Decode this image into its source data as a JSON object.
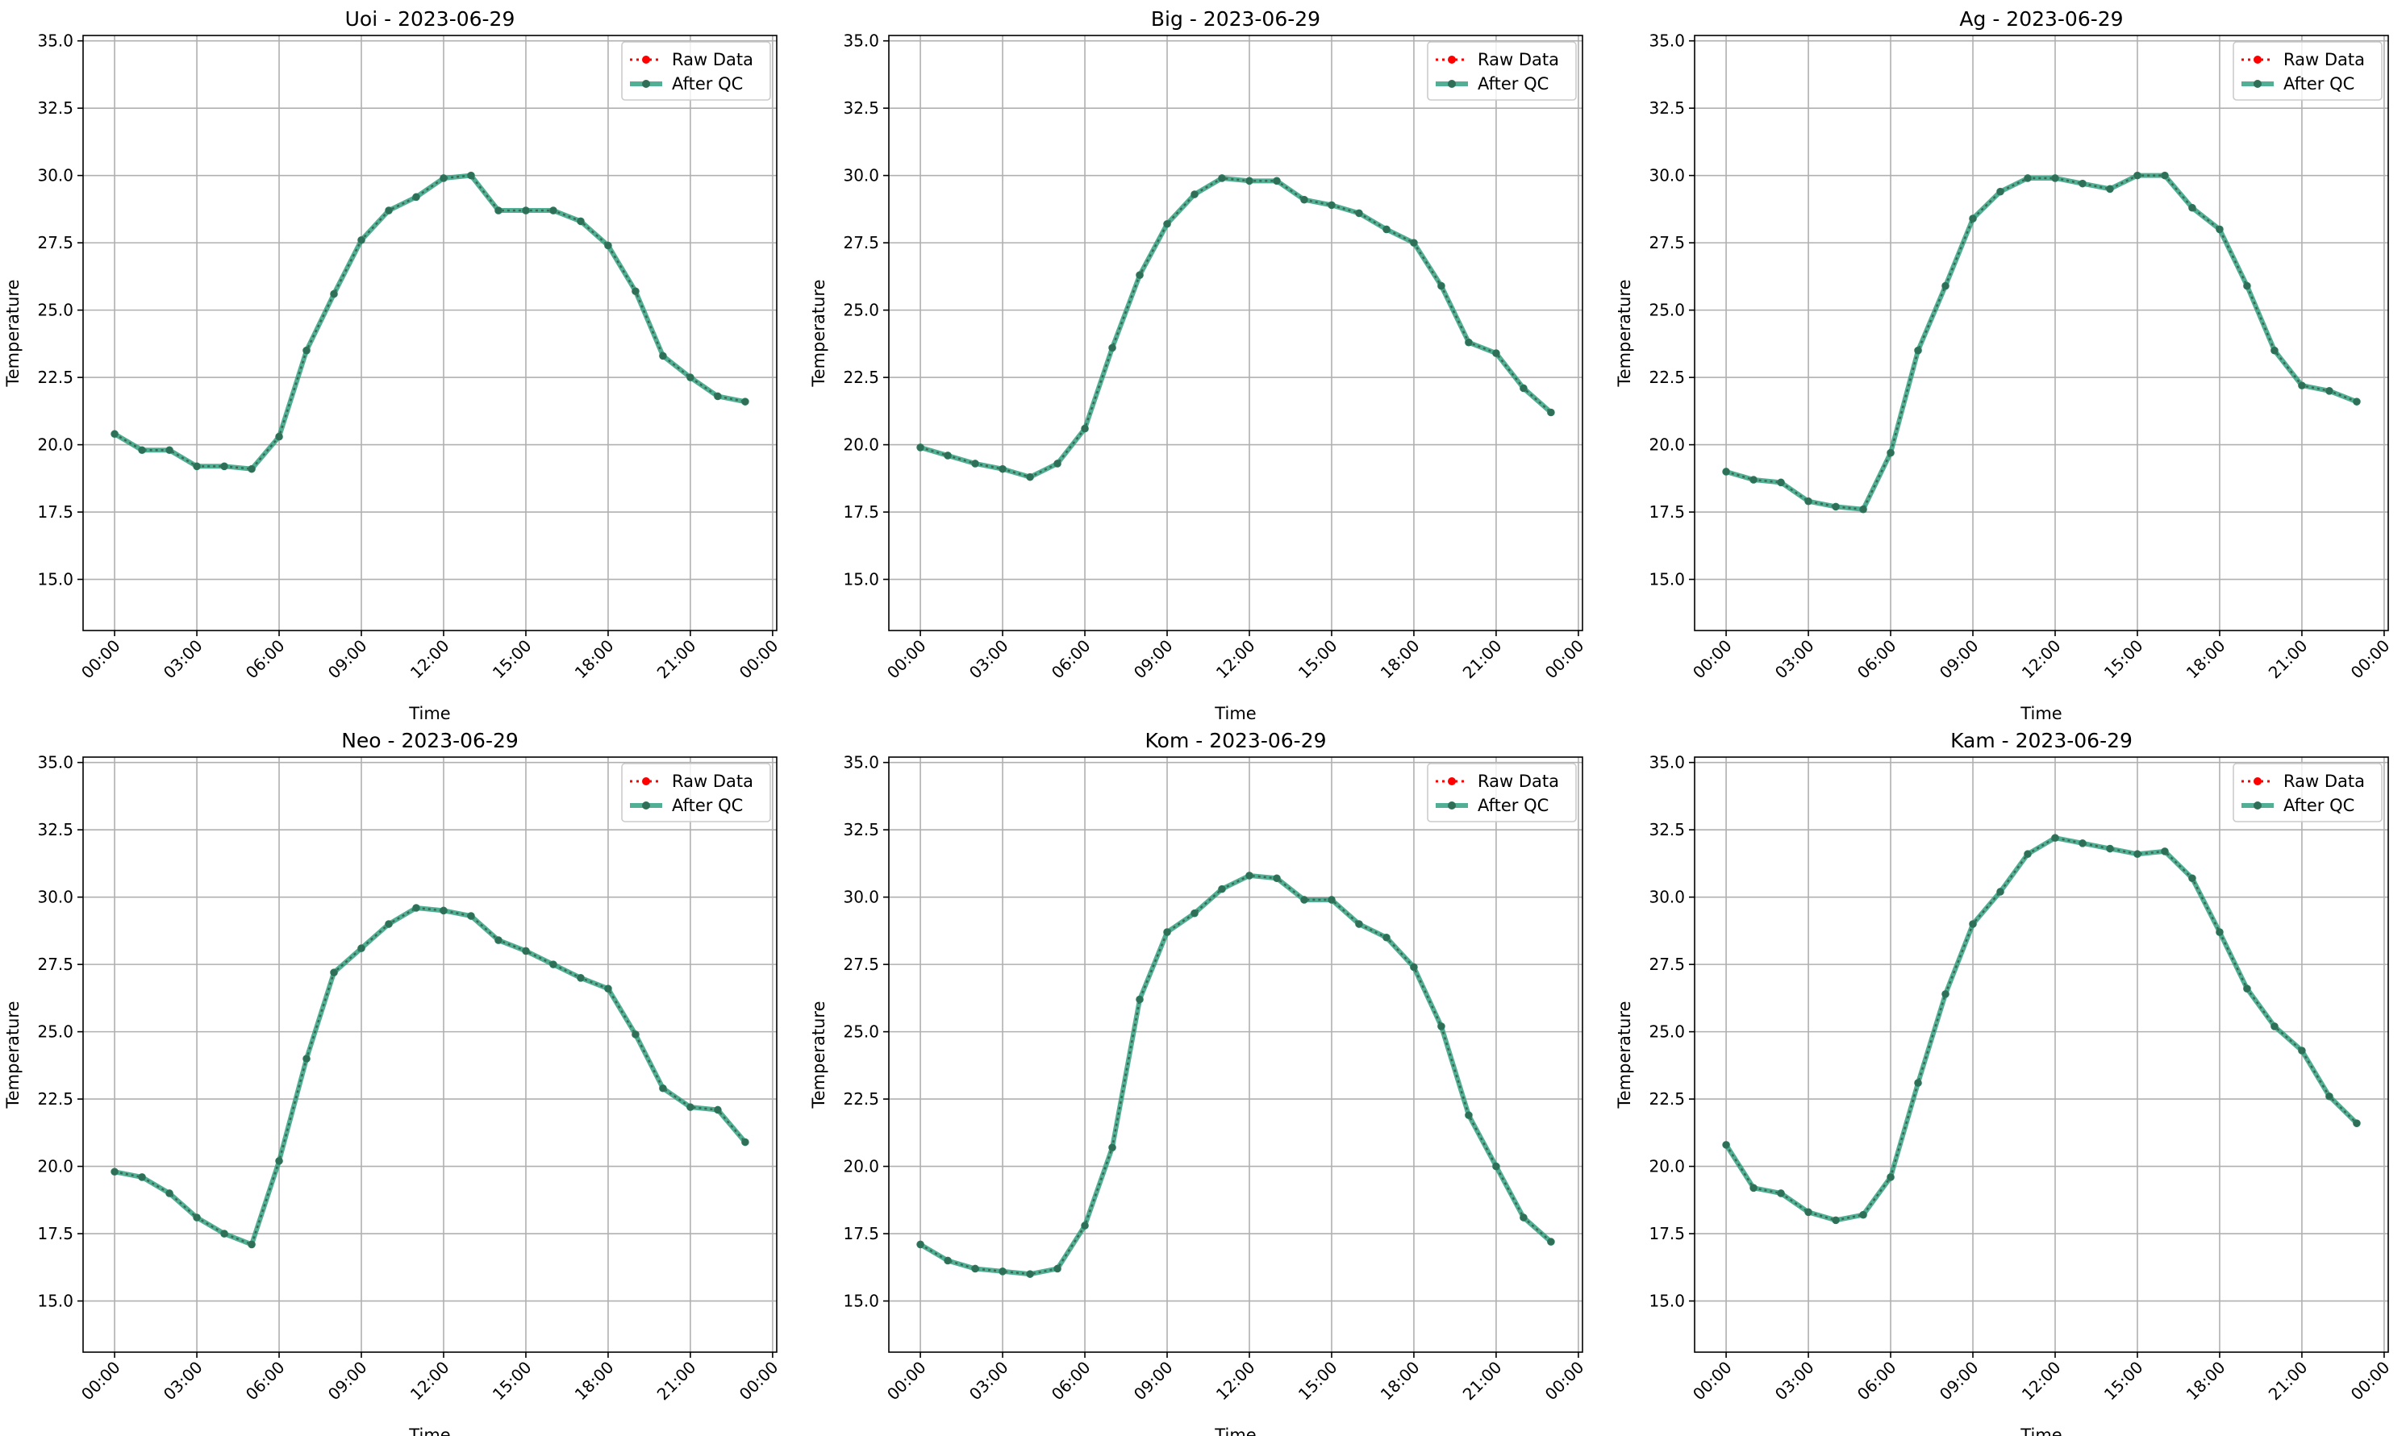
{
  "chart_data": [
    {
      "type": "line",
      "title": "Uoi - 2023-06-29",
      "xlabel": "Time",
      "ylabel": "Temperature",
      "ylim": [
        13.1,
        35.2
      ],
      "xlim_hours": [
        -1.15,
        24.15
      ],
      "yticks": [
        15.0,
        17.5,
        20.0,
        22.5,
        25.0,
        27.5,
        30.0,
        32.5,
        35.0
      ],
      "ytick_labels": [
        "15.0",
        "17.5",
        "20.0",
        "22.5",
        "25.0",
        "27.5",
        "30.0",
        "32.5",
        "35.0"
      ],
      "xticks_hours": [
        0,
        3,
        6,
        9,
        12,
        15,
        18,
        21,
        24
      ],
      "xtick_labels": [
        "00:00",
        "03:00",
        "06:00",
        "09:00",
        "12:00",
        "15:00",
        "18:00",
        "21:00",
        "00:00"
      ],
      "grid": true,
      "legend": "top-right",
      "x_hours": [
        0,
        1,
        2,
        3,
        4,
        5,
        6,
        7,
        8,
        9,
        10,
        11,
        12,
        13,
        14,
        15,
        16,
        17,
        18,
        19,
        20,
        21,
        22,
        23
      ],
      "series": [
        {
          "name": "Raw Data",
          "color": "#ff0000",
          "values": [
            20.4,
            19.8,
            19.8,
            19.2,
            19.2,
            19.1,
            20.3,
            23.5,
            25.6,
            27.6,
            28.7,
            29.2,
            29.9,
            30.0,
            28.7,
            28.7,
            28.7,
            28.3,
            27.4,
            25.7,
            23.3,
            22.5,
            21.8,
            21.6
          ]
        },
        {
          "name": "After QC",
          "color": "#2a9d7c",
          "values": [
            20.4,
            19.8,
            19.8,
            19.2,
            19.2,
            19.1,
            20.3,
            23.5,
            25.6,
            27.6,
            28.7,
            29.2,
            29.9,
            30.0,
            28.7,
            28.7,
            28.7,
            28.3,
            27.4,
            25.7,
            23.3,
            22.5,
            21.8,
            21.6
          ]
        }
      ]
    },
    {
      "type": "line",
      "title": "Big - 2023-06-29",
      "xlabel": "Time",
      "ylabel": "Temperature",
      "ylim": [
        13.1,
        35.2
      ],
      "xlim_hours": [
        -1.15,
        24.15
      ],
      "yticks": [
        15.0,
        17.5,
        20.0,
        22.5,
        25.0,
        27.5,
        30.0,
        32.5,
        35.0
      ],
      "ytick_labels": [
        "15.0",
        "17.5",
        "20.0",
        "22.5",
        "25.0",
        "27.5",
        "30.0",
        "32.5",
        "35.0"
      ],
      "xticks_hours": [
        0,
        3,
        6,
        9,
        12,
        15,
        18,
        21,
        24
      ],
      "xtick_labels": [
        "00:00",
        "03:00",
        "06:00",
        "09:00",
        "12:00",
        "15:00",
        "18:00",
        "21:00",
        "00:00"
      ],
      "grid": true,
      "legend": "top-right",
      "x_hours": [
        0,
        1,
        2,
        3,
        4,
        5,
        6,
        7,
        8,
        9,
        10,
        11,
        12,
        13,
        14,
        15,
        16,
        17,
        18,
        19,
        20,
        21,
        22,
        23
      ],
      "series": [
        {
          "name": "Raw Data",
          "color": "#ff0000",
          "values": [
            19.9,
            19.6,
            19.3,
            19.1,
            18.8,
            19.3,
            20.6,
            23.6,
            26.3,
            28.2,
            29.3,
            29.9,
            29.8,
            29.8,
            29.1,
            28.9,
            28.6,
            28.0,
            27.5,
            25.9,
            23.8,
            23.4,
            22.1,
            21.2
          ]
        },
        {
          "name": "After QC",
          "color": "#2a9d7c",
          "values": [
            19.9,
            19.6,
            19.3,
            19.1,
            18.8,
            19.3,
            20.6,
            23.6,
            26.3,
            28.2,
            29.3,
            29.9,
            29.8,
            29.8,
            29.1,
            28.9,
            28.6,
            28.0,
            27.5,
            25.9,
            23.8,
            23.4,
            22.1,
            21.2
          ]
        }
      ]
    },
    {
      "type": "line",
      "title": "Ag - 2023-06-29",
      "xlabel": "Time",
      "ylabel": "Temperature",
      "ylim": [
        13.1,
        35.2
      ],
      "xlim_hours": [
        -1.15,
        24.15
      ],
      "yticks": [
        15.0,
        17.5,
        20.0,
        22.5,
        25.0,
        27.5,
        30.0,
        32.5,
        35.0
      ],
      "ytick_labels": [
        "15.0",
        "17.5",
        "20.0",
        "22.5",
        "25.0",
        "27.5",
        "30.0",
        "32.5",
        "35.0"
      ],
      "xticks_hours": [
        0,
        3,
        6,
        9,
        12,
        15,
        18,
        21,
        24
      ],
      "xtick_labels": [
        "00:00",
        "03:00",
        "06:00",
        "09:00",
        "12:00",
        "15:00",
        "18:00",
        "21:00",
        "00:00"
      ],
      "grid": true,
      "legend": "top-right",
      "x_hours": [
        0,
        1,
        2,
        3,
        4,
        5,
        6,
        7,
        8,
        9,
        10,
        11,
        12,
        13,
        14,
        15,
        16,
        17,
        18,
        19,
        20,
        21,
        22,
        23
      ],
      "series": [
        {
          "name": "Raw Data",
          "color": "#ff0000",
          "values": [
            19.0,
            18.7,
            18.6,
            17.9,
            17.7,
            17.6,
            19.7,
            23.5,
            25.9,
            28.4,
            29.4,
            29.9,
            29.9,
            29.7,
            29.5,
            30.0,
            30.0,
            28.8,
            28.0,
            25.9,
            23.5,
            22.2,
            22.0,
            21.6
          ]
        },
        {
          "name": "After QC",
          "color": "#2a9d7c",
          "values": [
            19.0,
            18.7,
            18.6,
            17.9,
            17.7,
            17.6,
            19.7,
            23.5,
            25.9,
            28.4,
            29.4,
            29.9,
            29.9,
            29.7,
            29.5,
            30.0,
            30.0,
            28.8,
            28.0,
            25.9,
            23.5,
            22.2,
            22.0,
            21.6
          ]
        }
      ]
    },
    {
      "type": "line",
      "title": "Neo - 2023-06-29",
      "xlabel": "Time",
      "ylabel": "Temperature",
      "ylim": [
        13.1,
        35.2
      ],
      "xlim_hours": [
        -1.15,
        24.15
      ],
      "yticks": [
        15.0,
        17.5,
        20.0,
        22.5,
        25.0,
        27.5,
        30.0,
        32.5,
        35.0
      ],
      "ytick_labels": [
        "15.0",
        "17.5",
        "20.0",
        "22.5",
        "25.0",
        "27.5",
        "30.0",
        "32.5",
        "35.0"
      ],
      "xticks_hours": [
        0,
        3,
        6,
        9,
        12,
        15,
        18,
        21,
        24
      ],
      "xtick_labels": [
        "00:00",
        "03:00",
        "06:00",
        "09:00",
        "12:00",
        "15:00",
        "18:00",
        "21:00",
        "00:00"
      ],
      "grid": true,
      "legend": "top-right",
      "x_hours": [
        0,
        1,
        2,
        3,
        4,
        5,
        6,
        7,
        8,
        9,
        10,
        11,
        12,
        13,
        14,
        15,
        16,
        17,
        18,
        19,
        20,
        21,
        22,
        23
      ],
      "series": [
        {
          "name": "Raw Data",
          "color": "#ff0000",
          "values": [
            19.8,
            19.6,
            19.0,
            18.1,
            17.5,
            17.1,
            20.2,
            24.0,
            27.2,
            28.1,
            29.0,
            29.6,
            29.5,
            29.3,
            28.4,
            28.0,
            27.5,
            27.0,
            26.6,
            24.9,
            22.9,
            22.2,
            22.1,
            20.9
          ]
        },
        {
          "name": "After QC",
          "color": "#2a9d7c",
          "values": [
            19.8,
            19.6,
            19.0,
            18.1,
            17.5,
            17.1,
            20.2,
            24.0,
            27.2,
            28.1,
            29.0,
            29.6,
            29.5,
            29.3,
            28.4,
            28.0,
            27.5,
            27.0,
            26.6,
            24.9,
            22.9,
            22.2,
            22.1,
            20.9
          ]
        }
      ]
    },
    {
      "type": "line",
      "title": "Kom - 2023-06-29",
      "xlabel": "Time",
      "ylabel": "Temperature",
      "ylim": [
        13.1,
        35.2
      ],
      "xlim_hours": [
        -1.15,
        24.15
      ],
      "yticks": [
        15.0,
        17.5,
        20.0,
        22.5,
        25.0,
        27.5,
        30.0,
        32.5,
        35.0
      ],
      "ytick_labels": [
        "15.0",
        "17.5",
        "20.0",
        "22.5",
        "25.0",
        "27.5",
        "30.0",
        "32.5",
        "35.0"
      ],
      "xticks_hours": [
        0,
        3,
        6,
        9,
        12,
        15,
        18,
        21,
        24
      ],
      "xtick_labels": [
        "00:00",
        "03:00",
        "06:00",
        "09:00",
        "12:00",
        "15:00",
        "18:00",
        "21:00",
        "00:00"
      ],
      "grid": true,
      "legend": "top-right",
      "x_hours": [
        0,
        1,
        2,
        3,
        4,
        5,
        6,
        7,
        8,
        9,
        10,
        11,
        12,
        13,
        14,
        15,
        16,
        17,
        18,
        19,
        20,
        21,
        22,
        23
      ],
      "series": [
        {
          "name": "Raw Data",
          "color": "#ff0000",
          "values": [
            17.1,
            16.5,
            16.2,
            16.1,
            16.0,
            16.2,
            17.8,
            20.7,
            26.2,
            28.7,
            29.4,
            30.3,
            30.8,
            30.7,
            29.9,
            29.9,
            29.0,
            28.5,
            27.4,
            25.2,
            21.9,
            20.0,
            18.1,
            17.2
          ]
        },
        {
          "name": "After QC",
          "color": "#2a9d7c",
          "values": [
            17.1,
            16.5,
            16.2,
            16.1,
            16.0,
            16.2,
            17.8,
            20.7,
            26.2,
            28.7,
            29.4,
            30.3,
            30.8,
            30.7,
            29.9,
            29.9,
            29.0,
            28.5,
            27.4,
            25.2,
            21.9,
            20.0,
            18.1,
            17.2
          ]
        }
      ]
    },
    {
      "type": "line",
      "title": "Kam - 2023-06-29",
      "xlabel": "Time",
      "ylabel": "Temperature",
      "ylim": [
        13.1,
        35.2
      ],
      "xlim_hours": [
        -1.15,
        24.15
      ],
      "yticks": [
        15.0,
        17.5,
        20.0,
        22.5,
        25.0,
        27.5,
        30.0,
        32.5,
        35.0
      ],
      "ytick_labels": [
        "15.0",
        "17.5",
        "20.0",
        "22.5",
        "25.0",
        "27.5",
        "30.0",
        "32.5",
        "35.0"
      ],
      "xticks_hours": [
        0,
        3,
        6,
        9,
        12,
        15,
        18,
        21,
        24
      ],
      "xtick_labels": [
        "00:00",
        "03:00",
        "06:00",
        "09:00",
        "12:00",
        "15:00",
        "18:00",
        "21:00",
        "00:00"
      ],
      "grid": true,
      "legend": "top-right",
      "x_hours": [
        0,
        1,
        2,
        3,
        4,
        5,
        6,
        7,
        8,
        9,
        10,
        11,
        12,
        13,
        14,
        15,
        16,
        17,
        18,
        19,
        20,
        21,
        22,
        23
      ],
      "series": [
        {
          "name": "Raw Data",
          "color": "#ff0000",
          "values": [
            20.8,
            19.2,
            19.0,
            18.3,
            18.0,
            18.2,
            19.6,
            23.1,
            26.4,
            29.0,
            30.2,
            31.6,
            32.2,
            32.0,
            31.8,
            31.6,
            31.7,
            30.7,
            28.7,
            26.6,
            25.2,
            24.3,
            22.6,
            21.6
          ]
        },
        {
          "name": "After QC",
          "color": "#2a9d7c",
          "values": [
            20.8,
            19.2,
            19.0,
            18.3,
            18.0,
            18.2,
            19.6,
            23.1,
            26.4,
            29.0,
            30.2,
            31.6,
            32.2,
            32.0,
            31.8,
            31.6,
            31.7,
            30.7,
            28.7,
            26.6,
            25.2,
            24.3,
            22.6,
            21.6
          ]
        }
      ]
    }
  ]
}
